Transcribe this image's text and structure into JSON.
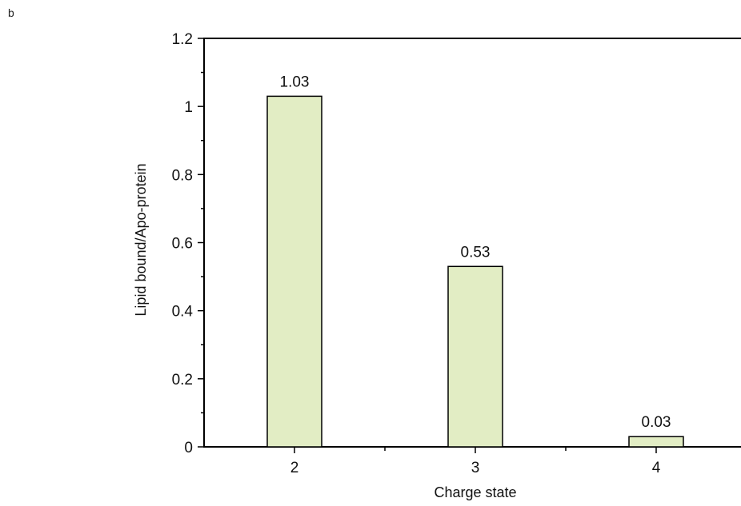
{
  "panel_label": "b",
  "chart_data": {
    "type": "bar",
    "categories": [
      "2",
      "3",
      "4"
    ],
    "values": [
      1.03,
      0.53,
      0.03
    ],
    "data_labels": [
      "1.03",
      "0.53",
      "0.03"
    ],
    "xlabel": "Charge state",
    "ylabel": "Lipid bound/Apo-protein",
    "ylim": [
      0,
      1.2
    ],
    "yticks": [
      0,
      0.2,
      0.4,
      0.6,
      0.8,
      1,
      1.2
    ],
    "ytick_labels": [
      "0",
      "0.2",
      "0.4",
      "0.6",
      "0.8",
      "1",
      "1.2"
    ],
    "grid": false,
    "bar_color": "#e2edc4"
  }
}
